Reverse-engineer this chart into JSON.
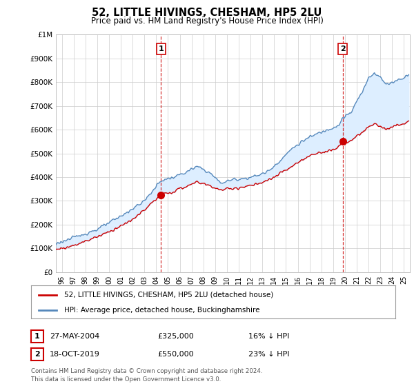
{
  "title": "52, LITTLE HIVINGS, CHESHAM, HP5 2LU",
  "subtitle": "Price paid vs. HM Land Registry's House Price Index (HPI)",
  "legend_label_red": "52, LITTLE HIVINGS, CHESHAM, HP5 2LU (detached house)",
  "legend_label_blue": "HPI: Average price, detached house, Buckinghamshire",
  "footer": "Contains HM Land Registry data © Crown copyright and database right 2024.\nThis data is licensed under the Open Government Licence v3.0.",
  "point1_date": "27-MAY-2004",
  "point1_price": "£325,000",
  "point1_hpi": "16% ↓ HPI",
  "point1_year": 2004.4,
  "point1_value": 325000,
  "point2_date": "18-OCT-2019",
  "point2_price": "£550,000",
  "point2_hpi": "23% ↓ HPI",
  "point2_year": 2019.8,
  "point2_value": 550000,
  "ylim": [
    0,
    1000000
  ],
  "yticks": [
    0,
    100000,
    200000,
    300000,
    400000,
    500000,
    600000,
    700000,
    800000,
    900000,
    1000000
  ],
  "ytick_labels": [
    "£0",
    "£100K",
    "£200K",
    "£300K",
    "£400K",
    "£500K",
    "£600K",
    "£700K",
    "£800K",
    "£900K",
    "£1M"
  ],
  "xlim_start": 1995.5,
  "xlim_end": 2025.5,
  "background_color": "#ffffff",
  "grid_color": "#cccccc",
  "fill_color": "#ddeeff",
  "red_color": "#cc0000",
  "blue_color": "#5588bb"
}
